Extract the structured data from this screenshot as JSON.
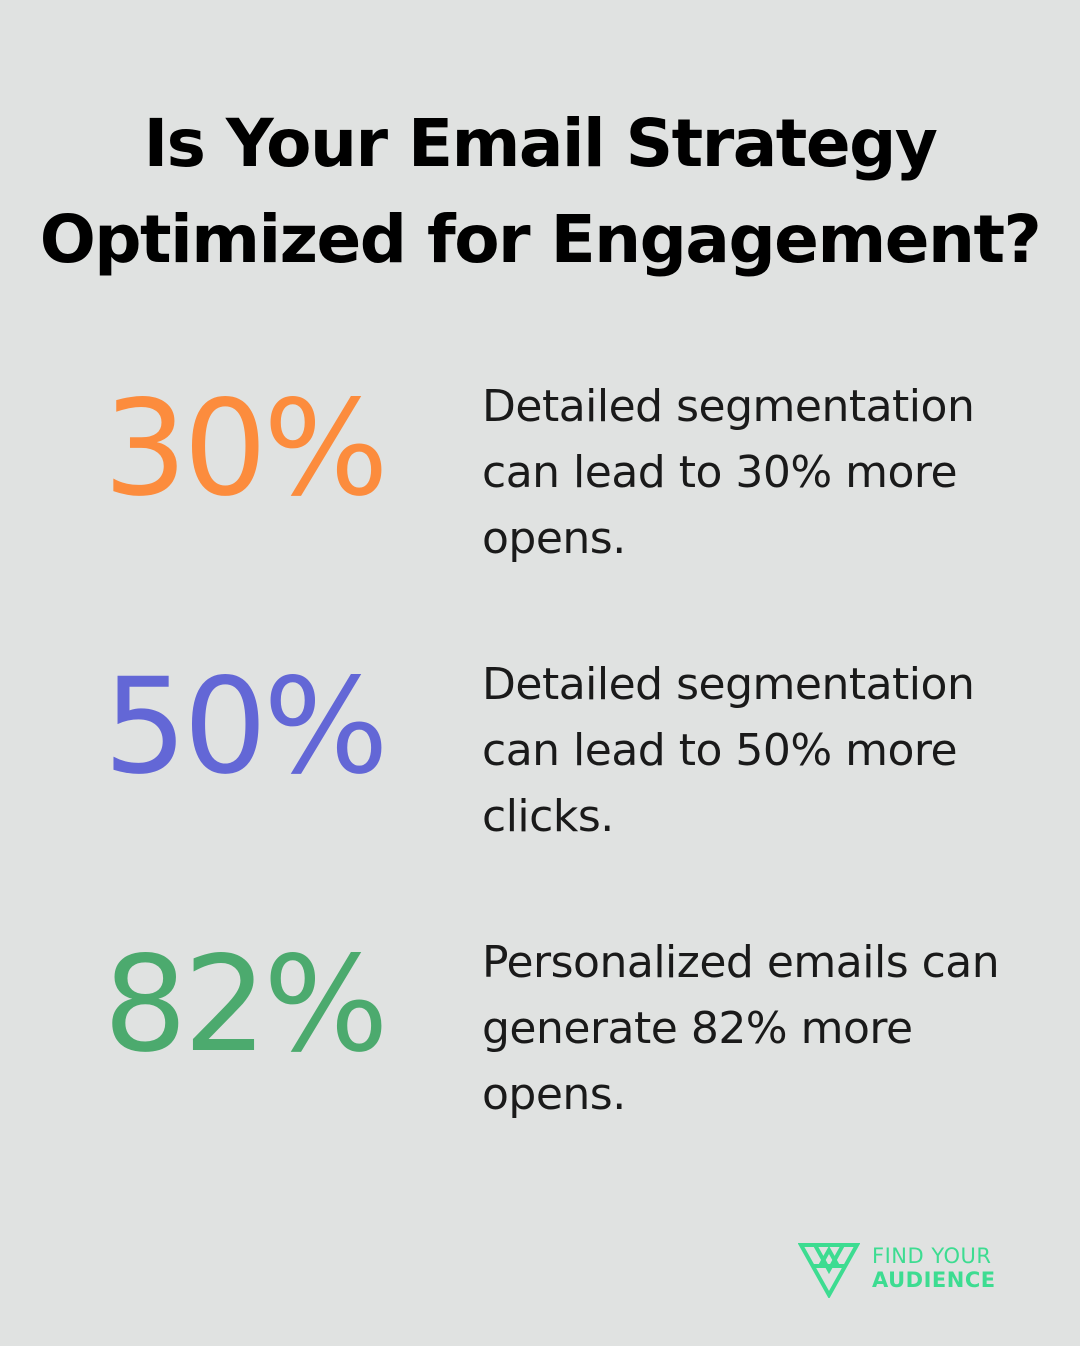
{
  "title": {
    "line1": "Is Your Email Strategy",
    "line2": "Optimized for Engagement?"
  },
  "stats": [
    {
      "value": "30%",
      "color": "#fc8c3d",
      "lines": [
        "Detailed segmentation",
        "can lead to 30% more",
        "opens."
      ]
    },
    {
      "value": "50%",
      "color": "#6367d6",
      "lines": [
        "Detailed segmentation",
        "can lead to 50% more",
        "clicks."
      ]
    },
    {
      "value": "82%",
      "color": "#4caa6e",
      "lines": [
        "Personalized emails can",
        "generate 82% more",
        "opens."
      ]
    }
  ],
  "logo": {
    "icon": "find-your-audience-logo-icon",
    "line1": "FIND YOUR",
    "line2": "AUDIENCE",
    "color": "#3ddc91"
  },
  "colors": {
    "background": "#e0e2e1",
    "title": "#000000",
    "body_text": "#1a1a1a"
  }
}
